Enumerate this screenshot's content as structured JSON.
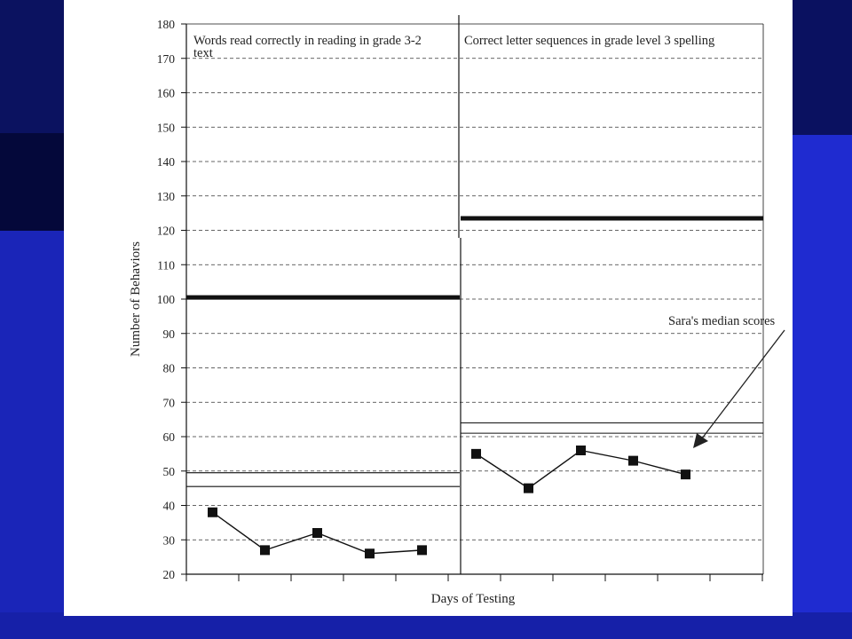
{
  "colors": {
    "slide_background": "#1c28c8",
    "slide_dark": "#050a40",
    "panel_background": "#ffffff",
    "ink": "#111111",
    "gridline": "#333333"
  },
  "chart_data": {
    "type": "line",
    "ylabel": "Number of Behaviors",
    "xlabel": "Days of Testing",
    "ylim": [
      20,
      180
    ],
    "y_ticks": [
      20,
      30,
      40,
      50,
      60,
      70,
      80,
      90,
      100,
      110,
      120,
      130,
      140,
      150,
      160,
      170,
      180
    ],
    "grid": "horizontal dashed",
    "panels": [
      {
        "title_lines": [
          "Words read correctly in reading in grade 3-2",
          "text"
        ],
        "series": [
          {
            "x": [
              1,
              2,
              3,
              4,
              5
            ],
            "values": [
              38,
              27,
              32,
              26,
              27
            ]
          }
        ],
        "thick_line": 100.5,
        "thin_lines": [
          49.5,
          45.5
        ]
      },
      {
        "title_lines": [
          "Correct letter sequences in grade level 3 spelling"
        ],
        "series": [
          {
            "x": [
              1,
              2,
              3,
              4,
              5
            ],
            "values": [
              55,
              45,
              56,
              53,
              49
            ]
          }
        ],
        "thick_line": 123.5,
        "thin_lines": [
          64,
          61
        ]
      }
    ],
    "annotation": {
      "text": "Sara's median scores",
      "arrow_to": {
        "panel": 2,
        "x": 4.2,
        "y": 57
      }
    }
  }
}
